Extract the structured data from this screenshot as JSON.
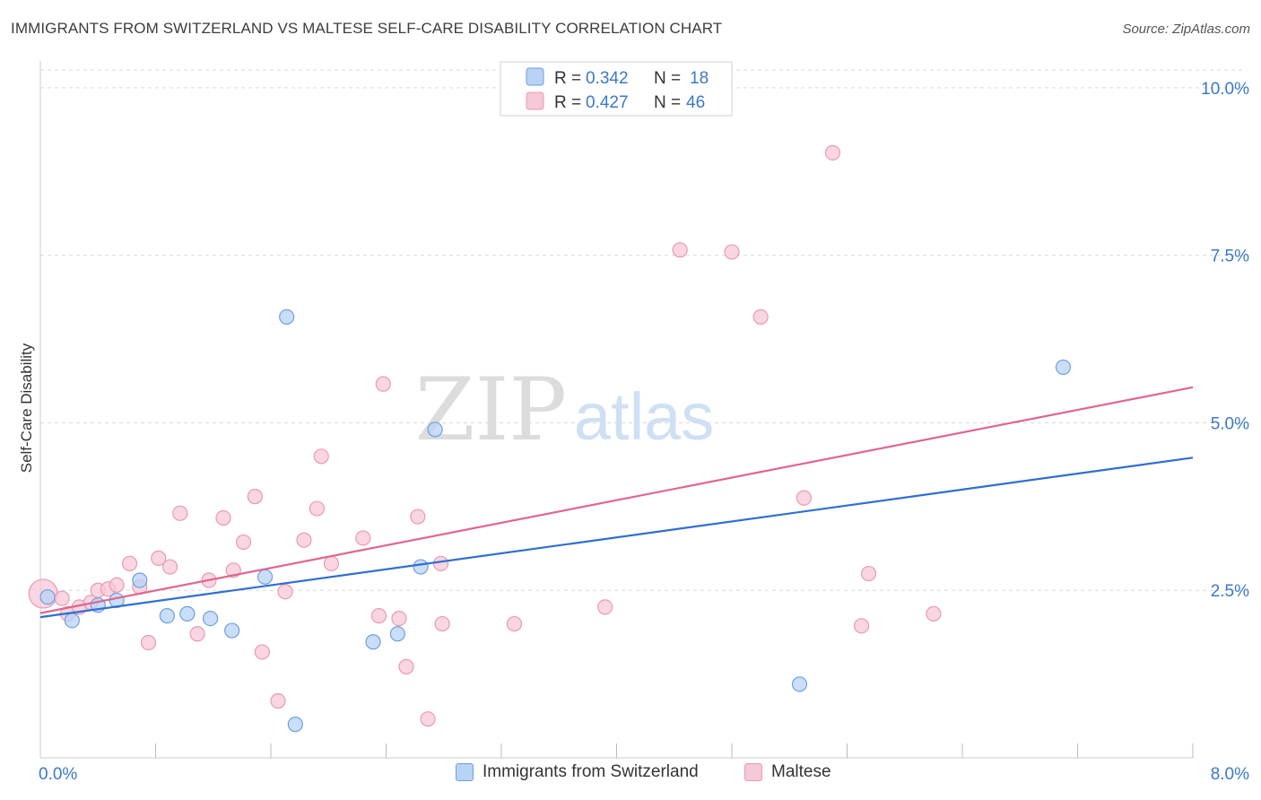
{
  "title": "IMMIGRANTS FROM SWITZERLAND VS MALTESE SELF-CARE DISABILITY CORRELATION CHART",
  "source": "Source: ZipAtlas.com",
  "watermark": {
    "zip": "ZIP",
    "atlas": "atlas"
  },
  "stats_legend": {
    "rows": [
      {
        "r_label": "R = ",
        "r_value": "0.342",
        "n_label": "N = ",
        "n_value": "18"
      },
      {
        "r_label": "R = ",
        "r_value": "0.427",
        "n_label": "N = ",
        "n_value": "46"
      }
    ]
  },
  "colors": {
    "blue_fill": "#b8d3f5",
    "blue_stroke": "#6f9fe0",
    "blue_line": "#2f6fd0",
    "pink_fill": "#f7c8d7",
    "pink_stroke": "#e99ab4",
    "pink_line": "#e0668f",
    "value_text": "#3c78c8",
    "grid": "#d9d9d9"
  },
  "chart_data": {
    "type": "scatter",
    "title": "IMMIGRANTS FROM SWITZERLAND VS MALTESE SELF-CARE DISABILITY CORRELATION CHART",
    "xlabel": "",
    "ylabel": "Self-Care Disability",
    "xlim": [
      0,
      8
    ],
    "ylim": [
      0,
      10.4
    ],
    "x_tick_labels": [
      "0.0%",
      "8.0%"
    ],
    "y_ticks": [
      2.5,
      5.0,
      7.5,
      10.0
    ],
    "y_tick_labels": [
      "2.5%",
      "5.0%",
      "7.5%",
      "10.0%"
    ],
    "grid": true,
    "legend_position": "bottom",
    "series": [
      {
        "name": "Immigrants from Switzerland",
        "r": 0.342,
        "n": 18,
        "trend": {
          "x": [
            0,
            8
          ],
          "y": [
            2.1,
            4.48
          ]
        },
        "points": [
          [
            0.05,
            2.4
          ],
          [
            0.22,
            2.05
          ],
          [
            0.4,
            2.28
          ],
          [
            0.53,
            2.35
          ],
          [
            0.69,
            2.65
          ],
          [
            0.88,
            2.12
          ],
          [
            1.02,
            2.15
          ],
          [
            1.18,
            2.08
          ],
          [
            1.33,
            1.9
          ],
          [
            1.56,
            2.7
          ],
          [
            1.71,
            6.58
          ],
          [
            1.77,
            0.5
          ],
          [
            2.31,
            1.73
          ],
          [
            2.48,
            1.85
          ],
          [
            2.64,
            2.85
          ],
          [
            2.74,
            4.9
          ],
          [
            5.27,
            1.1
          ],
          [
            7.1,
            5.83
          ]
        ]
      },
      {
        "name": "Maltese",
        "r": 0.427,
        "n": 46,
        "trend": {
          "x": [
            0,
            8
          ],
          "y": [
            2.16,
            5.53
          ]
        },
        "points": [
          [
            0.02,
            2.45
          ],
          [
            0.15,
            2.38
          ],
          [
            0.19,
            2.15
          ],
          [
            0.27,
            2.25
          ],
          [
            0.35,
            2.32
          ],
          [
            0.4,
            2.5
          ],
          [
            0.47,
            2.52
          ],
          [
            0.53,
            2.58
          ],
          [
            0.62,
            2.9
          ],
          [
            0.69,
            2.55
          ],
          [
            0.75,
            1.72
          ],
          [
            0.82,
            2.98
          ],
          [
            0.9,
            2.85
          ],
          [
            0.97,
            3.65
          ],
          [
            1.09,
            1.85
          ],
          [
            1.17,
            2.65
          ],
          [
            1.27,
            3.58
          ],
          [
            1.34,
            2.8
          ],
          [
            1.41,
            3.22
          ],
          [
            1.49,
            3.9
          ],
          [
            1.54,
            1.58
          ],
          [
            1.65,
            0.85
          ],
          [
            1.7,
            2.48
          ],
          [
            1.83,
            3.25
          ],
          [
            1.92,
            3.72
          ],
          [
            1.95,
            4.5
          ],
          [
            2.02,
            2.9
          ],
          [
            2.24,
            3.28
          ],
          [
            2.35,
            2.12
          ],
          [
            2.38,
            5.58
          ],
          [
            2.49,
            2.08
          ],
          [
            2.54,
            1.36
          ],
          [
            2.62,
            3.6
          ],
          [
            2.69,
            0.58
          ],
          [
            2.78,
            2.9
          ],
          [
            2.79,
            2.0
          ],
          [
            3.29,
            2.0
          ],
          [
            3.92,
            2.25
          ],
          [
            4.44,
            7.58
          ],
          [
            4.8,
            7.55
          ],
          [
            5.0,
            6.58
          ],
          [
            5.3,
            3.88
          ],
          [
            5.5,
            9.03
          ],
          [
            5.7,
            1.97
          ],
          [
            5.75,
            2.75
          ],
          [
            6.2,
            2.15
          ]
        ]
      }
    ]
  }
}
